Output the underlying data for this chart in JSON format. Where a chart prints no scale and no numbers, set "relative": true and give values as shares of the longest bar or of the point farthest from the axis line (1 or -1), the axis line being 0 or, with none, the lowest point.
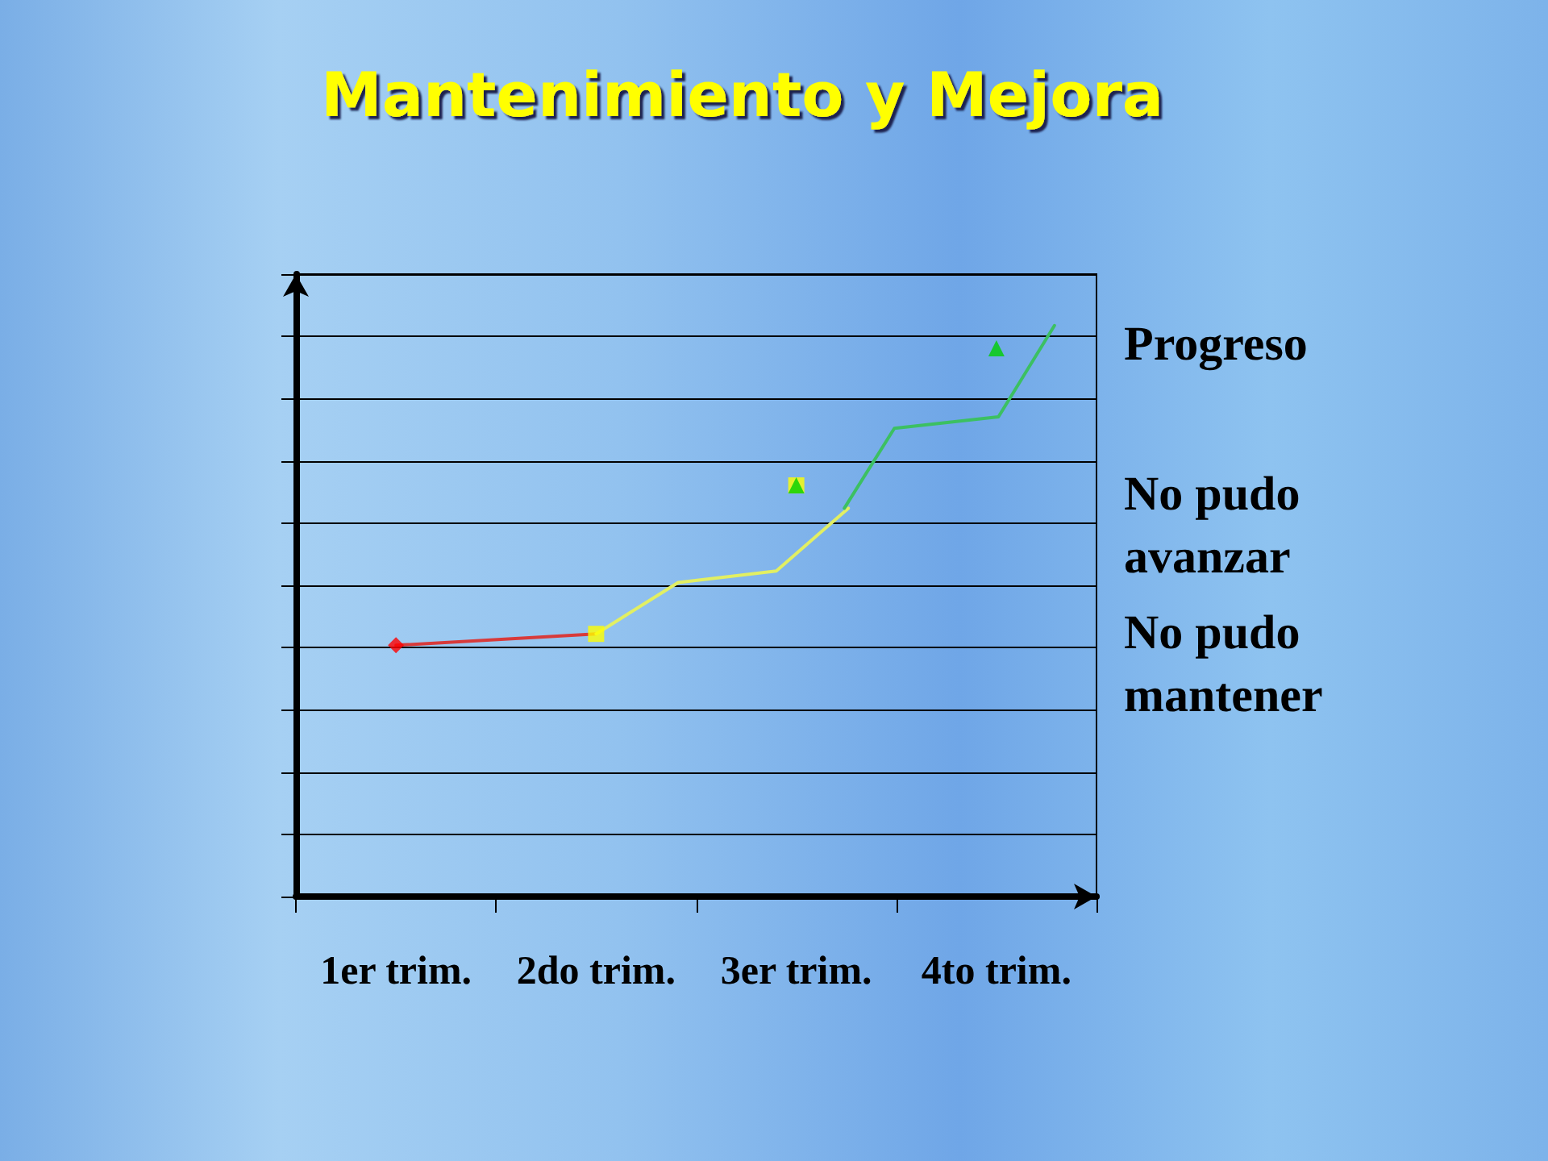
{
  "chart_data": {
    "type": "line",
    "title": "Mantenimiento y Mejora",
    "relative": true,
    "grid": "y",
    "xlim": [
      0.5,
      4.5
    ],
    "xticks": [
      {
        "value": 0.5,
        "label": null
      },
      {
        "value": 1,
        "label": "1er trim."
      },
      {
        "value": 1.5,
        "label": null
      },
      {
        "value": 2,
        "label": "2do trim."
      },
      {
        "value": 2.5,
        "label": null
      },
      {
        "value": 3,
        "label": "3er trim."
      },
      {
        "value": 3.5,
        "label": null
      },
      {
        "value": 4,
        "label": "4to trim."
      },
      {
        "value": 4.5,
        "label": null
      }
    ],
    "series": [
      {
        "color": "#d83a3a",
        "marker": "none",
        "x": [
          1,
          2
        ],
        "values": [
          0.44,
          0.46
        ]
      },
      {
        "color": "#e2ef62",
        "marker": "none",
        "x": [
          2,
          2.41,
          2.9,
          3.26
        ],
        "values": [
          0.46,
          0.55,
          0.57,
          0.68
        ]
      },
      {
        "color": "#3cc062",
        "marker": "none",
        "x": [
          3.24,
          3.49,
          4.01,
          4.29
        ],
        "values": [
          0.68,
          0.82,
          0.84,
          1
        ]
      },
      {
        "type": "scatter",
        "color": "#ff0000",
        "marker": "diamond",
        "x": [
          1
        ],
        "values": [
          0.44
        ]
      },
      {
        "type": "scatter",
        "color": "#ffff00",
        "marker": "square",
        "x": [
          2,
          3
        ],
        "values": [
          0.46,
          0.72
        ]
      },
      {
        "type": "scatter",
        "color": "#00d000",
        "marker": "triangle",
        "x": [
          3,
          4
        ],
        "values": [
          0.72,
          0.96
        ]
      }
    ],
    "annotations": [
      "Progreso",
      "No pudo avanzar",
      "No pudo mantener"
    ]
  }
}
